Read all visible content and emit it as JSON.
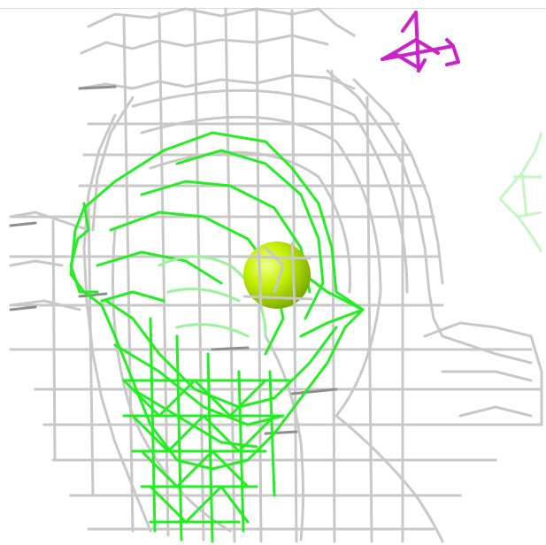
{
  "viewer": {
    "colors": {
      "background": "#ffffff",
      "gray_mesh": "#c8c8c8",
      "gray_mesh_dark": "#9a9a9a",
      "green_mesh": "#22ee22",
      "green_mesh_light": "#9af29a",
      "sphere": "#b7f000",
      "axes": "#cc22cc"
    },
    "icons": {
      "sphere": "ion-sphere",
      "axes": "orientation-axes-icon",
      "faded_mesh": "faded-density-mesh"
    }
  }
}
